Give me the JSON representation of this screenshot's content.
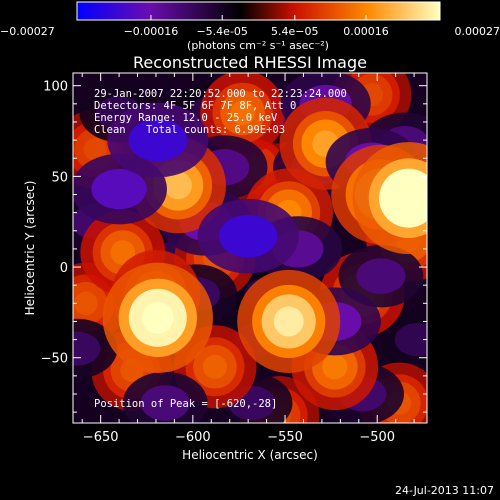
{
  "chart_data": {
    "type": "heatmap",
    "title": "Reconstructed RHESSI Image",
    "xlabel": "Heliocentric X (arcsec)",
    "ylabel": "Heliocentric Y (arcsec)",
    "xlim": [
      -665,
      -473
    ],
    "ylim": [
      -86,
      107
    ],
    "x_ticks": [
      -650,
      -600,
      -550,
      -500
    ],
    "y_ticks": [
      -50,
      0,
      50,
      100
    ],
    "colorbar": {
      "range": [
        -0.00027,
        0.00027
      ],
      "tick_values": [
        -0.00027,
        -0.00016,
        -5.4e-05,
        5.4e-05,
        0.00016,
        0.00027
      ],
      "tick_labels": [
        "-0.00027",
        "-0.00016",
        "-5.4e-05",
        "5.4e-05",
        "0.00016",
        "0.00027"
      ],
      "unit_label": "(photons cm⁻² s⁻¹ asec⁻²)",
      "colormap": [
        "#0000ff",
        "#6a0dad",
        "#000000",
        "#cc1100",
        "#ff8800",
        "#ffffc0"
      ]
    },
    "annotations": {
      "time_range": "29-Jan-2007 22:20:52.000 to 22:23:24.000",
      "detectors": "Detectors: 4F 5F 6F 7F 8F, Att 0",
      "energy_range": "Energy Range: 12.0 - 25.0 keV",
      "algorithm": "Clean",
      "total_counts": "Total counts: 6.99E+03",
      "peak_position": "Position of Peak = [-620,-28]"
    },
    "footer_timestamp": "24-Jul-2013 11:07",
    "sources": [
      {
        "x": -619,
        "y": -28,
        "value": 0.00026
      },
      {
        "x": -483,
        "y": 38,
        "value": 0.00027
      },
      {
        "x": -548,
        "y": -30,
        "value": 0.00022
      },
      {
        "x": -608,
        "y": 45,
        "value": 0.00018
      },
      {
        "x": -528,
        "y": 68,
        "value": 0.00016
      },
      {
        "x": -548,
        "y": 30,
        "value": 0.00014
      },
      {
        "x": -638,
        "y": 8,
        "value": 0.00012
      },
      {
        "x": -573,
        "y": 85,
        "value": 0.00012
      },
      {
        "x": -633,
        "y": -57,
        "value": 0.0001
      },
      {
        "x": -588,
        "y": -55,
        "value": 0.00011
      },
      {
        "x": -508,
        "y": -15,
        "value": 0.00012
      },
      {
        "x": -523,
        "y": -55,
        "value": 0.00013
      },
      {
        "x": -488,
        "y": -75,
        "value": 0.0001
      },
      {
        "x": -588,
        "y": 5,
        "value": 0.0001
      },
      {
        "x": -653,
        "y": 65,
        "value": 9e-05
      },
      {
        "x": -608,
        "y": -5,
        "value": 8e-05
      },
      {
        "x": -503,
        "y": 95,
        "value": 9e-05
      },
      {
        "x": -658,
        "y": -20,
        "value": 0.0001
      },
      {
        "x": -553,
        "y": -82,
        "value": 9e-05
      },
      {
        "x": -498,
        "y": 40,
        "value": 0.0002
      },
      {
        "x": -483,
        "y": 15,
        "value": 0.00012
      },
      {
        "x": -565,
        "y": 55,
        "value": 8e-05
      },
      {
        "x": -620,
        "y": -15,
        "value": 0.00014
      },
      {
        "x": -640,
        "y": 85,
        "value": -9e-05
      },
      {
        "x": -619,
        "y": 70,
        "value": -0.00021
      },
      {
        "x": -640,
        "y": 43,
        "value": -0.00018
      },
      {
        "x": -583,
        "y": 55,
        "value": -0.00013
      },
      {
        "x": -593,
        "y": 25,
        "value": -0.00016
      },
      {
        "x": -570,
        "y": 17,
        "value": -0.00021
      },
      {
        "x": -543,
        "y": 10,
        "value": -0.00014
      },
      {
        "x": -533,
        "y": 55,
        "value": -0.00013
      },
      {
        "x": -503,
        "y": 58,
        "value": -0.00016
      },
      {
        "x": -485,
        "y": 68,
        "value": -0.00012
      },
      {
        "x": -553,
        "y": 85,
        "value": -0.00011
      },
      {
        "x": -528,
        "y": 90,
        "value": -0.00015
      },
      {
        "x": -498,
        "y": -5,
        "value": -0.00012
      },
      {
        "x": -523,
        "y": -30,
        "value": -0.00016
      },
      {
        "x": -598,
        "y": -15,
        "value": -0.0001
      },
      {
        "x": -615,
        "y": -75,
        "value": -0.00012
      },
      {
        "x": -568,
        "y": -75,
        "value": -0.0001
      },
      {
        "x": -508,
        "y": -70,
        "value": -0.00011
      },
      {
        "x": -653,
        "y": 25,
        "value": -0.00011
      },
      {
        "x": -663,
        "y": -45,
        "value": -0.0001
      },
      {
        "x": -565,
        "y": -40,
        "value": -9e-05
      },
      {
        "x": -610,
        "y": 5,
        "value": -9e-05
      },
      {
        "x": -478,
        "y": -40,
        "value": -9e-05
      },
      {
        "x": -590,
        "y": 85,
        "value": -8e-05
      },
      {
        "x": -560,
        "y": -15,
        "value": -8e-05
      }
    ]
  }
}
